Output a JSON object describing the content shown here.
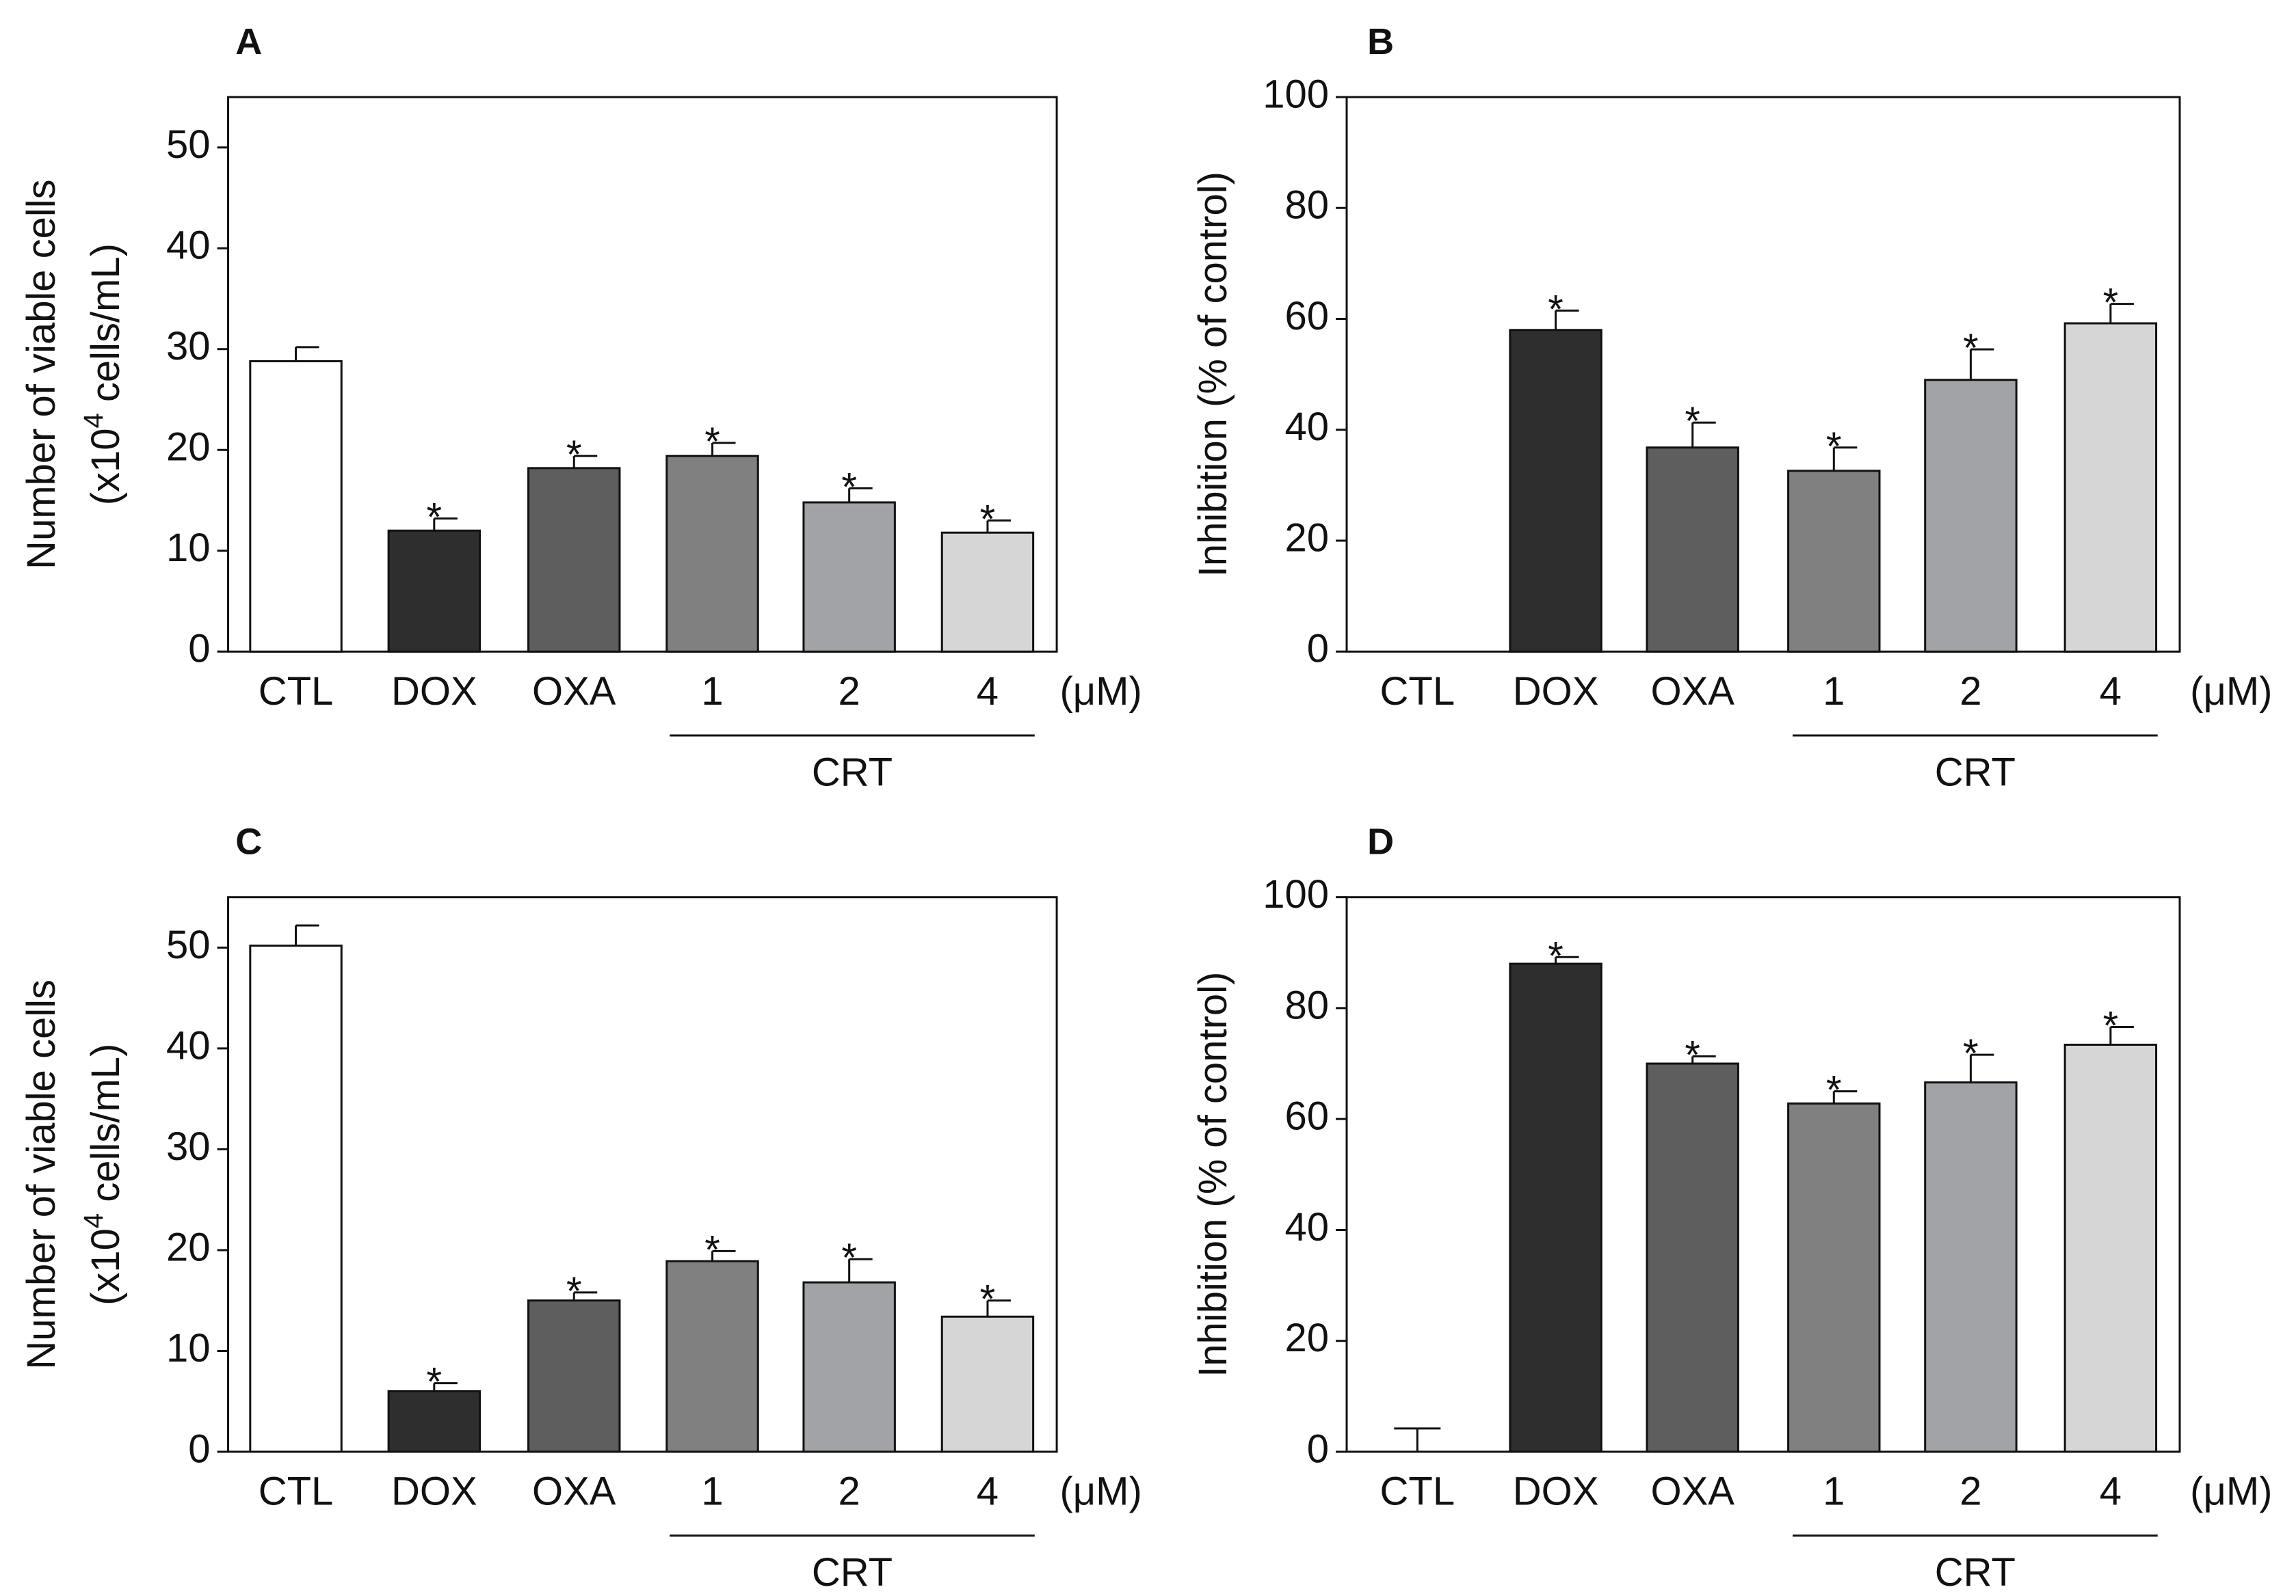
{
  "figure": {
    "panels": [
      "A",
      "B",
      "C",
      "D"
    ]
  },
  "chart_data": [
    {
      "panel": "A",
      "type": "bar",
      "categories": [
        "CTL",
        "DOX",
        "OXA",
        "1",
        "2",
        "4"
      ],
      "values": [
        28.8,
        12.0,
        18.2,
        19.4,
        14.8,
        11.8
      ],
      "errors": [
        1.4,
        1.2,
        1.2,
        1.3,
        1.4,
        1.2
      ],
      "significant": [
        false,
        true,
        true,
        true,
        true,
        true
      ],
      "star_symbol": "*",
      "ylabel_line1": "Number of viable cells",
      "ylabel_line2_pre": "(x10",
      "ylabel_line2_sup": "4",
      "ylabel_line2_post": " cells/mL)",
      "yticks": [
        "0",
        "10",
        "20",
        "30",
        "40",
        "50"
      ],
      "ylim": [
        0,
        55
      ],
      "unit_label": "(μM)",
      "group_label": "CRT",
      "group_members": [
        "1",
        "2",
        "4"
      ],
      "bar_colors": [
        "#ffffff",
        "#2e2e2e",
        "#5e5e5e",
        "#808080",
        "#a2a3a6",
        "#d6d6d6"
      ]
    },
    {
      "panel": "B",
      "type": "bar",
      "categories": [
        "CTL",
        "DOX",
        "OXA",
        "1",
        "2",
        "4"
      ],
      "values": [
        0,
        58.0,
        36.8,
        32.6,
        49.0,
        59.2
      ],
      "errors": [
        0,
        3.5,
        4.5,
        4.2,
        5.5,
        3.5
      ],
      "significant": [
        false,
        true,
        true,
        true,
        true,
        true
      ],
      "star_symbol": "*",
      "ylabel_line1": "Inhibition (% of control)",
      "yticks": [
        "0",
        "20",
        "40",
        "60",
        "80",
        "100"
      ],
      "ylim": [
        0,
        100
      ],
      "unit_label": "(μM)",
      "group_label": "CRT",
      "group_members": [
        "1",
        "2",
        "4"
      ],
      "bar_colors": [
        "#ffffff",
        "#2e2e2e",
        "#5e5e5e",
        "#808080",
        "#a2a3a6",
        "#d6d6d6"
      ]
    },
    {
      "panel": "C",
      "type": "bar",
      "categories": [
        "CTL",
        "DOX",
        "OXA",
        "1",
        "2",
        "4"
      ],
      "values": [
        50.2,
        6.0,
        15.0,
        18.9,
        16.8,
        13.4
      ],
      "errors": [
        2.0,
        0.8,
        0.8,
        1.0,
        2.3,
        1.6
      ],
      "significant": [
        false,
        true,
        true,
        true,
        true,
        true
      ],
      "star_symbol": "*",
      "ylabel_line1": "Number of viable cells",
      "ylabel_line2_pre": "(x10",
      "ylabel_line2_sup": "4",
      "ylabel_line2_post": " cells/mL)",
      "yticks": [
        "0",
        "10",
        "20",
        "30",
        "40",
        "50"
      ],
      "ylim": [
        0,
        55
      ],
      "unit_label": "(μM)",
      "group_label": "CRT",
      "group_members": [
        "1",
        "2",
        "4"
      ],
      "bar_colors": [
        "#ffffff",
        "#2e2e2e",
        "#5e5e5e",
        "#808080",
        "#a2a3a6",
        "#d6d6d6"
      ]
    },
    {
      "panel": "D",
      "type": "bar",
      "categories": [
        "CTL",
        "DOX",
        "OXA",
        "1",
        "2",
        "4"
      ],
      "values": [
        0,
        88.0,
        70.0,
        62.8,
        66.6,
        73.4
      ],
      "errors": [
        4.2,
        1.2,
        1.3,
        2.2,
        5.0,
        3.2
      ],
      "significant": [
        false,
        true,
        true,
        true,
        true,
        true
      ],
      "star_symbol": "*",
      "ylabel_line1": "Inhibition (% of control)",
      "yticks": [
        "0",
        "20",
        "40",
        "60",
        "80",
        "100"
      ],
      "ylim": [
        0,
        100
      ],
      "unit_label": "(μM)",
      "group_label": "CRT",
      "group_members": [
        "1",
        "2",
        "4"
      ],
      "bar_colors": [
        "#ffffff",
        "#2e2e2e",
        "#5e5e5e",
        "#808080",
        "#a2a3a6",
        "#d6d6d6"
      ]
    }
  ]
}
